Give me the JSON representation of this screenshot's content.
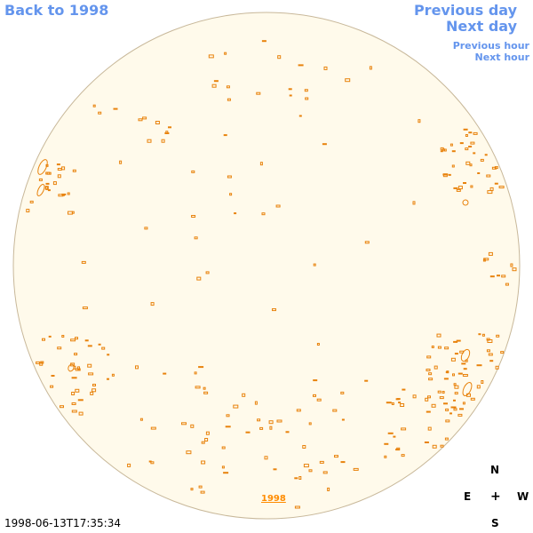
{
  "nav": {
    "back_label": "Back to 1998",
    "prev_day_label": "Previous day",
    "next_day_label": "Next day",
    "prev_hour_label": "Previous hour",
    "next_hour_label": "Next hour"
  },
  "timestamp": "1998-06-13T17:35:34",
  "year_link": "1998",
  "compass": {
    "n": "N",
    "e": "E",
    "center": "+",
    "w": "W",
    "s": "S"
  },
  "colors": {
    "disk_fill": "#fffaeb",
    "disk_border": "#c8b89a",
    "feature": "#e8820c",
    "link": "#6495ed"
  }
}
